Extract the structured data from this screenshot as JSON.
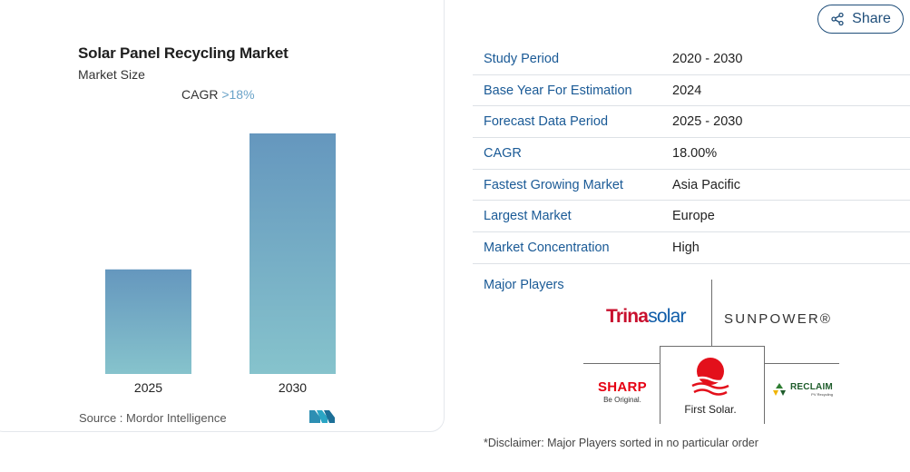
{
  "chart_card": {
    "title": "Solar Panel Recycling Market",
    "subtitle": "Market Size",
    "cagr_label": "CAGR",
    "cagr_value": ">18%",
    "source": "Source :  Mordor Intelligence",
    "bar_color_top": "#6597be",
    "bar_color_bottom": "#86c3cc"
  },
  "chart_data": {
    "type": "bar",
    "categories": [
      "2025",
      "2030"
    ],
    "values": [
      1,
      2.3
    ],
    "title": "Solar Panel Recycling Market",
    "subtitle": "Market Size",
    "xlabel": "",
    "ylabel": "",
    "grid": false,
    "legend": "none"
  },
  "share": {
    "label": "Share",
    "icon": "share-icon"
  },
  "info_table": [
    {
      "key": "Study Period",
      "value": "2020 - 2030"
    },
    {
      "key": "Base Year For Estimation",
      "value": "2024"
    },
    {
      "key": "Forecast Data Period",
      "value": "2025 - 2030"
    },
    {
      "key": "CAGR",
      "value": "18.00%"
    },
    {
      "key": "Fastest Growing Market",
      "value": "Asia Pacific"
    },
    {
      "key": "Largest Market",
      "value": "Europe"
    },
    {
      "key": "Market Concentration",
      "value": "High"
    }
  ],
  "players": {
    "label": "Major Players",
    "trina": {
      "part1": "Trina",
      "part2": "solar"
    },
    "sunpower": "SUNPOWER®",
    "sharp": {
      "name": "SHARP",
      "tagline": "Be Original."
    },
    "first_solar": "First Solar.",
    "reclaim": {
      "name": "RECLAIM",
      "tagline": "PV Recycling"
    }
  },
  "disclaimer": "*Disclaimer: Major Players sorted in no particular order",
  "colors": {
    "accent": "#1a5a96",
    "cagr": "#6aa3c8",
    "share_border": "#1f4e7a"
  }
}
